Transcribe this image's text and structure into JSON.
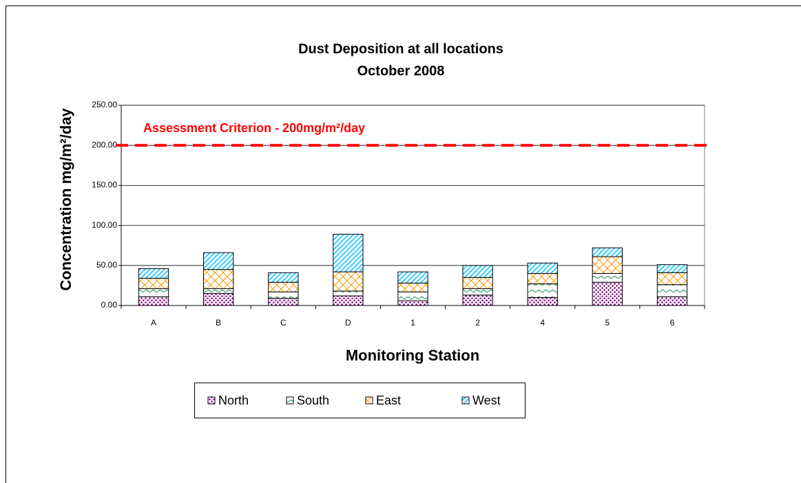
{
  "chart_data": {
    "type": "stacked_bar",
    "title": "Dust Deposition at all locations",
    "subtitle": "October 2008",
    "x_label": "Monitoring Station",
    "y_label": "Concentration mg/m²/day",
    "categories": [
      "A",
      "B",
      "C",
      "D",
      "1",
      "2",
      "4",
      "5",
      "6"
    ],
    "series": [
      {
        "name": "North",
        "color": "#800080",
        "values": [
          11,
          15,
          9,
          12,
          6,
          13,
          10,
          29,
          11
        ]
      },
      {
        "name": "South",
        "color": "#339966",
        "values": [
          10,
          6,
          8,
          6,
          11,
          8,
          17,
          11,
          15
        ]
      },
      {
        "name": "East",
        "color": "#ff9900",
        "values": [
          13,
          24,
          12,
          24,
          11,
          14,
          13,
          21,
          15
        ]
      },
      {
        "name": "West",
        "color": "#33ccff",
        "values": [
          12,
          21,
          12,
          47,
          14,
          15,
          13,
          11,
          10
        ]
      }
    ],
    "ylim": [
      0,
      250
    ],
    "yticks": [
      {
        "value": 0,
        "label": "0.00"
      },
      {
        "value": 50,
        "label": "50.00"
      },
      {
        "value": 100,
        "label": "100.00"
      },
      {
        "value": 150,
        "label": "150.00"
      },
      {
        "value": 200,
        "label": "200.00"
      },
      {
        "value": 250,
        "label": "250.00"
      }
    ],
    "grid": true,
    "reference_line": {
      "value": 200,
      "label": "Assessment Criterion - 200mg/m²/day",
      "color": "#ff0000"
    },
    "legend": "bottom"
  }
}
